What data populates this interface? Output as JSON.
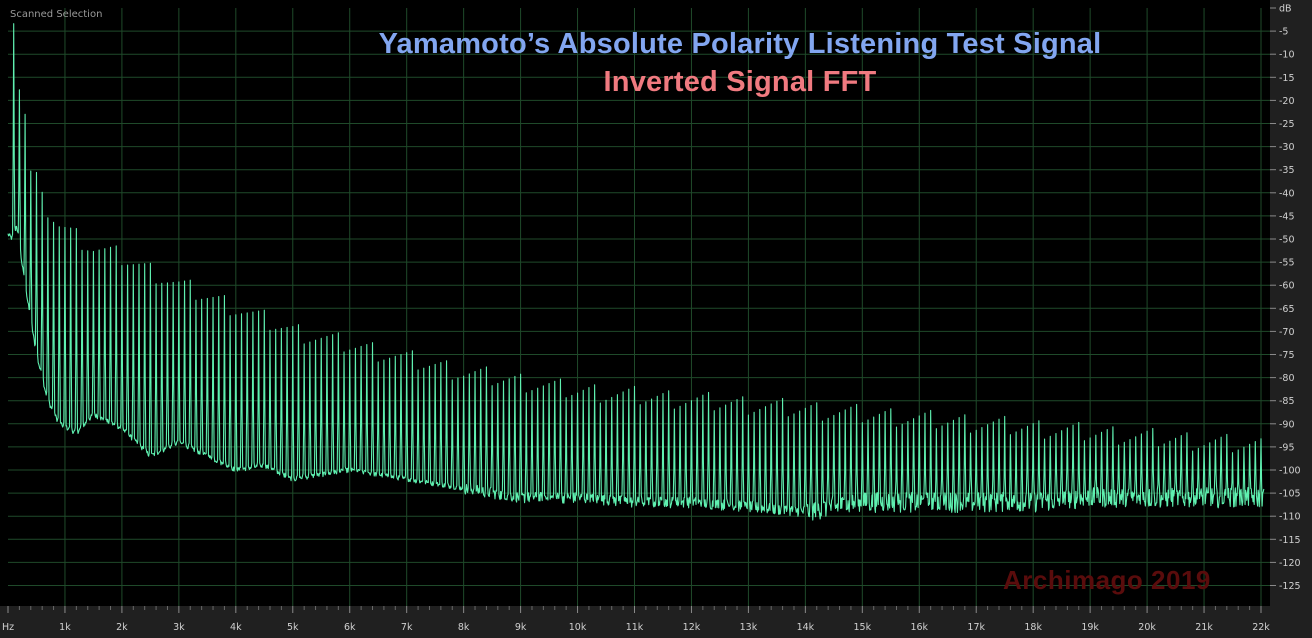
{
  "window": {
    "scanned_label": "Scanned Selection"
  },
  "titles": {
    "line1": "Yamamoto’s Absolute Polarity Listening Test Signal",
    "line2": "Inverted Signal FFT",
    "line1_color": "#82a6f0",
    "line2_color": "#f07a80"
  },
  "watermark": {
    "text": "Archimago 2019",
    "color": "#5a0c0c"
  },
  "colors": {
    "background": "#000000",
    "grid": "#1f4a2a",
    "trace": "#5ff0b0",
    "axis_panel": "#202020",
    "axis_text": "#d0d0d0"
  },
  "chart_data": {
    "type": "line",
    "title": "",
    "xlabel": "",
    "ylabel": "dB",
    "xunit_label": "Hz",
    "xlim": [
      0,
      22050
    ],
    "ylim": [
      -127,
      0
    ],
    "x_scale": "linear",
    "grid": true,
    "x_tick_labels": [
      "Hz",
      "1k",
      "2k",
      "3k",
      "4k",
      "5k",
      "6k",
      "7k",
      "8k",
      "9k",
      "10k",
      "11k",
      "12k",
      "13k",
      "14k",
      "15k",
      "16k",
      "17k",
      "18k",
      "19k",
      "20k",
      "21k",
      "22k"
    ],
    "x_tick_values": [
      0,
      1000,
      2000,
      3000,
      4000,
      5000,
      6000,
      7000,
      8000,
      9000,
      10000,
      11000,
      12000,
      13000,
      14000,
      15000,
      16000,
      17000,
      18000,
      19000,
      20000,
      21000,
      22000
    ],
    "y_tick_labels": [
      "dB",
      "-5",
      "-10",
      "-15",
      "-20",
      "-25",
      "-30",
      "-35",
      "-40",
      "-45",
      "-50",
      "-55",
      "-60",
      "-65",
      "-70",
      "-75",
      "-80",
      "-85",
      "-90",
      "-95",
      "-100",
      "-105",
      "-110",
      "-115",
      "-120",
      "-125"
    ],
    "y_tick_values": [
      0,
      -5,
      -10,
      -15,
      -20,
      -25,
      -30,
      -35,
      -40,
      -45,
      -50,
      -55,
      -60,
      -65,
      -70,
      -75,
      -80,
      -85,
      -90,
      -95,
      -100,
      -105,
      -110,
      -115,
      -120,
      -125
    ],
    "series": [
      {
        "kind": "fft_floor",
        "points": [
          [
            0,
            -49
          ],
          [
            80,
            -50
          ],
          [
            150,
            -47
          ],
          [
            300,
            -60
          ],
          [
            500,
            -75
          ],
          [
            700,
            -85
          ],
          [
            900,
            -90
          ],
          [
            1200,
            -92
          ],
          [
            1500,
            -88
          ],
          [
            2000,
            -91
          ],
          [
            2500,
            -97
          ],
          [
            3000,
            -94
          ],
          [
            3500,
            -97
          ],
          [
            4000,
            -100
          ],
          [
            4500,
            -99
          ],
          [
            5000,
            -102
          ],
          [
            6000,
            -100
          ],
          [
            7000,
            -102
          ],
          [
            8000,
            -104
          ],
          [
            9000,
            -106
          ],
          [
            10000,
            -106
          ],
          [
            11000,
            -107
          ],
          [
            12000,
            -107
          ],
          [
            13000,
            -108
          ],
          [
            14000,
            -109
          ],
          [
            15000,
            -107
          ],
          [
            16000,
            -107
          ],
          [
            17000,
            -107
          ],
          [
            18000,
            -107
          ],
          [
            19000,
            -106
          ],
          [
            20000,
            -106
          ],
          [
            21000,
            -106
          ],
          [
            22000,
            -106
          ]
        ]
      },
      {
        "kind": "harmonic_peaks",
        "fundamental_hz": 100,
        "peak_envelope": [
          [
            100,
            -2
          ],
          [
            200,
            -17
          ],
          [
            300,
            -23
          ],
          [
            400,
            -36
          ],
          [
            500,
            -37
          ],
          [
            600,
            -42
          ],
          [
            900,
            -47
          ],
          [
            1500,
            -52
          ],
          [
            2000,
            -54
          ],
          [
            3000,
            -60
          ],
          [
            4000,
            -65
          ],
          [
            5000,
            -70
          ],
          [
            6000,
            -73
          ],
          [
            7000,
            -76
          ],
          [
            8000,
            -79
          ],
          [
            9000,
            -81
          ],
          [
            10000,
            -83
          ],
          [
            12000,
            -85
          ],
          [
            14000,
            -87
          ],
          [
            16000,
            -89
          ],
          [
            18000,
            -91
          ],
          [
            20000,
            -93
          ],
          [
            22000,
            -95
          ]
        ]
      }
    ]
  }
}
